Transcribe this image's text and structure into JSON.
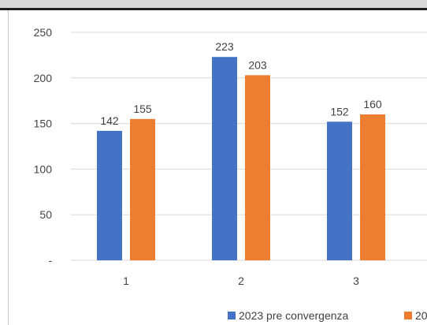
{
  "chart_data": {
    "type": "bar",
    "categories": [
      "1",
      "2",
      "3"
    ],
    "series": [
      {
        "name": "2023 pre convergenza",
        "values": [
          142,
          223,
          152
        ],
        "color": "#4472c4"
      },
      {
        "name": "20",
        "values": [
          155,
          203,
          160
        ],
        "color": "#ed7d31"
      }
    ],
    "ylim": [
      0,
      250
    ],
    "yticks": [
      {
        "value": 250,
        "label": "250"
      },
      {
        "value": 200,
        "label": "200"
      },
      {
        "value": 150,
        "label": "150"
      },
      {
        "value": 100,
        "label": "100"
      },
      {
        "value": 50,
        "label": "50"
      },
      {
        "value": 0,
        "label": "-"
      }
    ],
    "grid": true,
    "legend": "bottom",
    "gridline_color": "#d9d9d9",
    "axis_color": "#d9d9d9"
  }
}
